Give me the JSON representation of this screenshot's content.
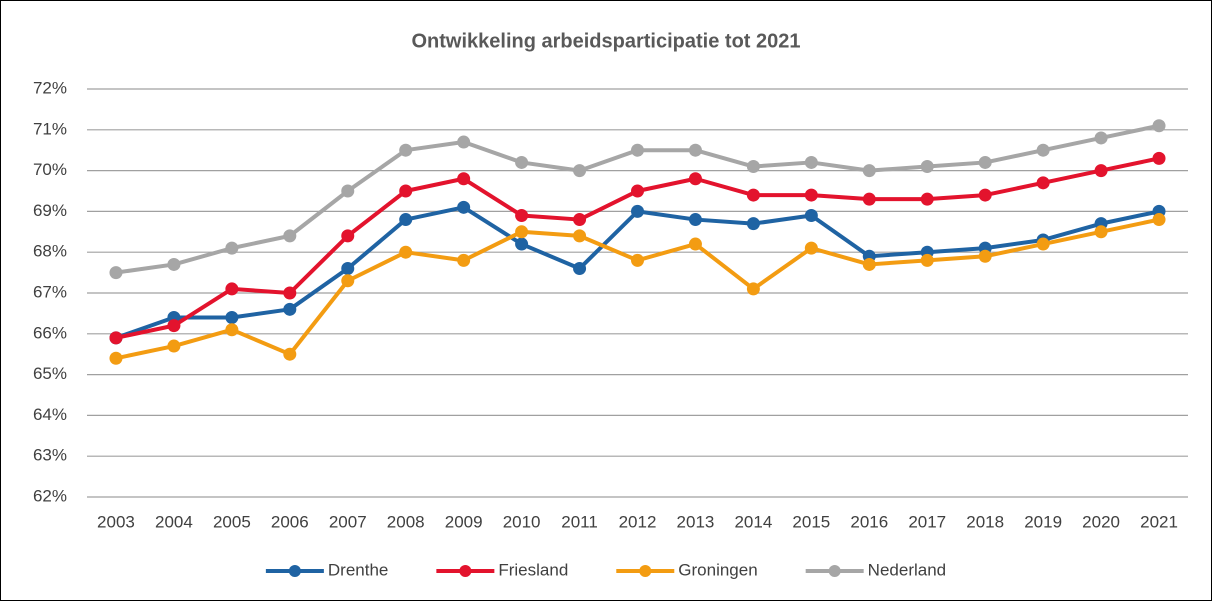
{
  "chart_data": {
    "type": "line",
    "title": "Ontwikkeling arbeidsparticipatie tot 2021",
    "categories": [
      "2003",
      "2004",
      "2005",
      "2006",
      "2007",
      "2008",
      "2009",
      "2010",
      "2011",
      "2012",
      "2013",
      "2014",
      "2015",
      "2016",
      "2017",
      "2018",
      "2019",
      "2020",
      "2021"
    ],
    "series": [
      {
        "name": "Drenthe",
        "color": "#1f63a3",
        "values": [
          65.9,
          66.4,
          66.4,
          66.6,
          67.6,
          68.8,
          69.1,
          68.2,
          67.6,
          69.0,
          68.8,
          68.7,
          68.9,
          67.9,
          68.0,
          68.1,
          68.3,
          68.7,
          69.0
        ]
      },
      {
        "name": "Friesland",
        "color": "#e3132d",
        "values": [
          65.9,
          66.2,
          67.1,
          67.0,
          68.4,
          69.5,
          69.8,
          68.9,
          68.8,
          69.5,
          69.8,
          69.4,
          69.4,
          69.3,
          69.3,
          69.4,
          69.7,
          70.0,
          70.3
        ]
      },
      {
        "name": "Groningen",
        "color": "#f39c12",
        "values": [
          65.4,
          65.7,
          66.1,
          65.5,
          67.3,
          68.0,
          67.8,
          68.5,
          68.4,
          67.8,
          68.2,
          67.1,
          68.1,
          67.7,
          67.8,
          67.9,
          68.2,
          68.5,
          68.8
        ]
      },
      {
        "name": "Nederland",
        "color": "#a6a6a6",
        "values": [
          67.5,
          67.7,
          68.1,
          68.4,
          69.5,
          70.5,
          70.7,
          70.2,
          70.0,
          70.5,
          70.5,
          70.1,
          70.2,
          70.0,
          70.1,
          70.2,
          70.5,
          70.8,
          71.1
        ]
      }
    ],
    "ylim": [
      62,
      72
    ],
    "yticks": [
      {
        "value": 62,
        "label": "62%"
      },
      {
        "value": 63,
        "label": "63%"
      },
      {
        "value": 64,
        "label": "64%"
      },
      {
        "value": 65,
        "label": "65%"
      },
      {
        "value": 66,
        "label": "66%"
      },
      {
        "value": 67,
        "label": "67%"
      },
      {
        "value": 68,
        "label": "68%"
      },
      {
        "value": 69,
        "label": "69%"
      },
      {
        "value": 70,
        "label": "70%"
      },
      {
        "value": 71,
        "label": "71%"
      },
      {
        "value": 72,
        "label": "72%"
      }
    ],
    "grid": true,
    "legend": "bottom"
  }
}
